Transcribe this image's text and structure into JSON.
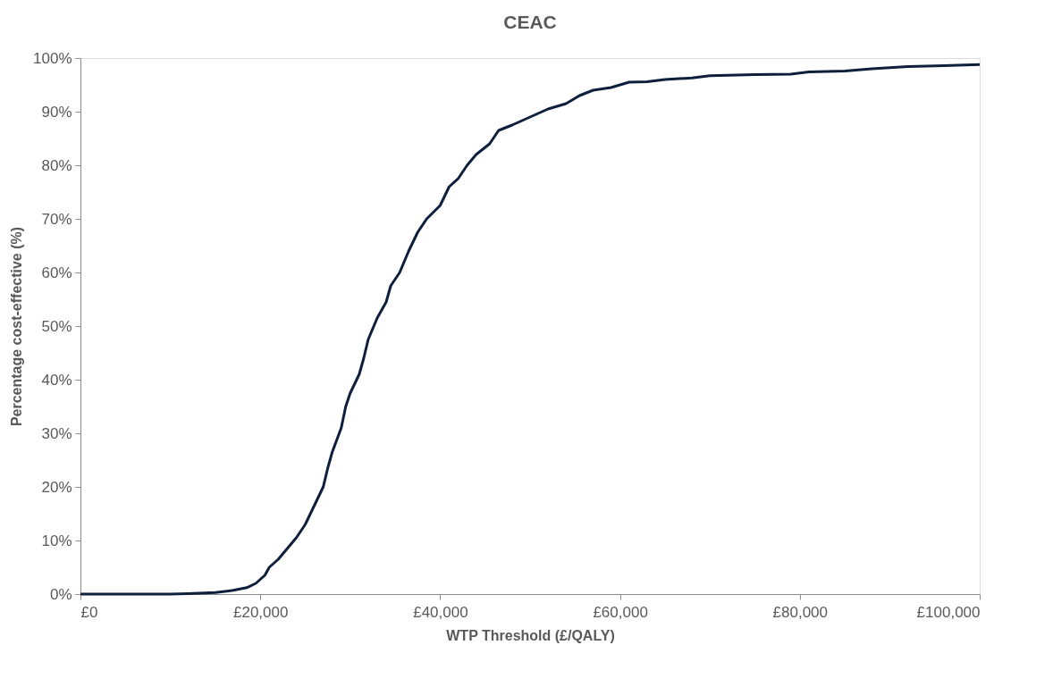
{
  "chart_data": {
    "type": "line",
    "title": "CEAC",
    "xlabel": "WTP Threshold (£/QALY)",
    "ylabel": "Percentage cost-effective (%)",
    "x": [
      0,
      10000,
      12000,
      15000,
      17000,
      18500,
      19500,
      20500,
      21000,
      22000,
      23000,
      24000,
      25000,
      26000,
      27000,
      27500,
      28000,
      29000,
      29500,
      30000,
      31000,
      31500,
      32000,
      33000,
      34000,
      34500,
      35500,
      36500,
      37500,
      38500,
      40000,
      41000,
      42000,
      43000,
      44000,
      45500,
      46500,
      48000,
      50000,
      52000,
      54000,
      55500,
      57000,
      59000,
      61000,
      63000,
      65000,
      68000,
      70000,
      75000,
      79000,
      81000,
      85000,
      88000,
      92000,
      96000,
      100000
    ],
    "series": [
      {
        "color": "#0d1f3c",
        "values": [
          0,
          0,
          0.1,
          0.3,
          0.7,
          1.2,
          2,
          3.5,
          5,
          6.5,
          8.5,
          10.5,
          13,
          16.5,
          20,
          23.5,
          26.5,
          31,
          35,
          37.5,
          41,
          44,
          47.5,
          51.5,
          54.5,
          57.5,
          60,
          64,
          67.5,
          70,
          72.5,
          76,
          77.5,
          80,
          82,
          84,
          86.5,
          87.5,
          89,
          90.5,
          91.5,
          93,
          94,
          94.5,
          95.5,
          95.6,
          96,
          96.3,
          96.7,
          96.9,
          97,
          97.4,
          97.6,
          98,
          98.4,
          98.6,
          98.8
        ]
      }
    ],
    "xlim": [
      0,
      100000
    ],
    "xticks": [
      {
        "value": 0,
        "label": "£0"
      },
      {
        "value": 20000,
        "label": "£20,000"
      },
      {
        "value": 40000,
        "label": "£40,000"
      },
      {
        "value": 60000,
        "label": "£60,000"
      },
      {
        "value": 80000,
        "label": "£80,000"
      },
      {
        "value": 100000,
        "label": "£100,000"
      }
    ],
    "ylim": [
      0,
      100
    ],
    "yticks": [
      {
        "value": 0,
        "label": "0%"
      },
      {
        "value": 10,
        "label": "10%"
      },
      {
        "value": 20,
        "label": "20%"
      },
      {
        "value": 30,
        "label": "30%"
      },
      {
        "value": 40,
        "label": "40%"
      },
      {
        "value": 50,
        "label": "50%"
      },
      {
        "value": 60,
        "label": "60%"
      },
      {
        "value": 70,
        "label": "70%"
      },
      {
        "value": 80,
        "label": "80%"
      },
      {
        "value": 90,
        "label": "90%"
      },
      {
        "value": 100,
        "label": "100%"
      }
    ],
    "grid": false,
    "legend": false,
    "marker": "none",
    "line_style": "solid"
  }
}
